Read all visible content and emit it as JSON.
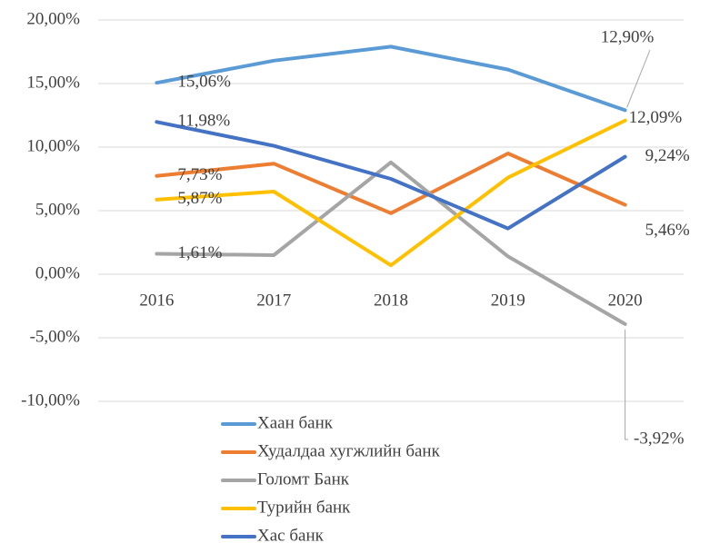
{
  "chart_data": {
    "type": "line",
    "categories": [
      "2016",
      "2017",
      "2018",
      "2019",
      "2020"
    ],
    "series": [
      {
        "name": "Хаан банк",
        "color": "#5b9bd5",
        "values": [
          15.06,
          16.8,
          17.9,
          16.1,
          12.9
        ],
        "value_labels": [
          "15,06%",
          null,
          null,
          null,
          "12,90%"
        ]
      },
      {
        "name": "Худалдаа хугжлийн банк",
        "color": "#ed7d31",
        "values": [
          7.73,
          8.7,
          4.8,
          9.5,
          5.46
        ],
        "value_labels": [
          "7,73%",
          null,
          null,
          null,
          "5,46%"
        ]
      },
      {
        "name": "Голомт Банк",
        "color": "#a5a5a5",
        "values": [
          1.61,
          1.5,
          8.8,
          1.4,
          -3.92
        ],
        "value_labels": [
          "1,61%",
          null,
          null,
          null,
          "-3,92%"
        ]
      },
      {
        "name": "Турийн банк",
        "color": "#ffc000",
        "values": [
          5.87,
          6.5,
          0.7,
          7.6,
          12.09
        ],
        "value_labels": [
          "5,87%",
          null,
          null,
          null,
          "12,09%"
        ]
      },
      {
        "name": "Хас банк",
        "color": "#4472c4",
        "values": [
          11.98,
          10.1,
          7.5,
          3.6,
          9.24
        ],
        "value_labels": [
          "11,98%",
          null,
          null,
          null,
          "9,24%"
        ]
      }
    ],
    "ylim": [
      -10,
      20
    ],
    "yticks": [
      {
        "value": -10,
        "label": "-10,00%"
      },
      {
        "value": -5,
        "label": "-5,00%"
      },
      {
        "value": 0,
        "label": "0,00%"
      },
      {
        "value": 5,
        "label": "5,00%"
      },
      {
        "value": 10,
        "label": "10,00%"
      },
      {
        "value": 15,
        "label": "15,00%"
      },
      {
        "value": 20,
        "label": "20,00%"
      }
    ],
    "grid": true
  }
}
